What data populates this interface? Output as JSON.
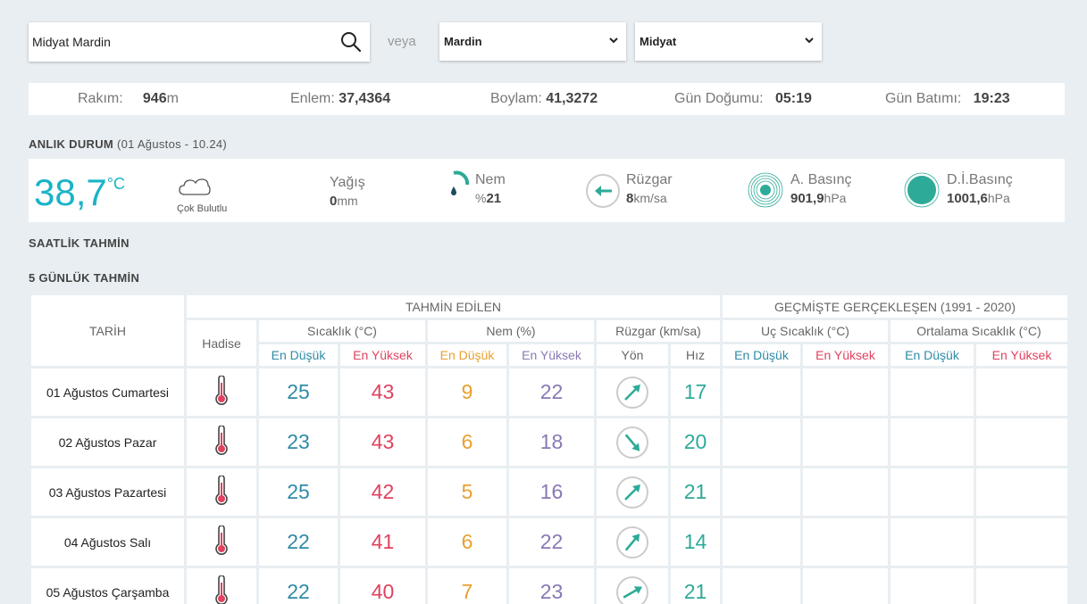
{
  "search": {
    "value": "Midyat Mardin"
  },
  "veya": "veya",
  "select_il": "Mardin",
  "select_ilce": "Midyat",
  "info": {
    "rakim_label": "Rakım:",
    "rakim_value": "946",
    "rakim_unit": "m",
    "enlem_label": "Enlem:",
    "enlem_value": "37,4364",
    "boylam_label": "Boylam:",
    "boylam_value": "41,3272",
    "gun_dogumu_label": "Gün Doğumu:",
    "gun_dogumu_value": "05:19",
    "gun_batimi_label": "Gün Batımı:",
    "gun_batimi_value": "19:23"
  },
  "current": {
    "title": "ANLIK DURUM",
    "date": "(01 Ağustos - 10.24)",
    "temp": "38,7",
    "temp_unit": "°C",
    "condition": "Çok Bulutlu",
    "yagis_label": "Yağış",
    "yagis_value": "0",
    "yagis_unit": "mm",
    "nem_label": "Nem",
    "nem_prefix": "%",
    "nem_value": "21",
    "ruzgar_label": "Rüzgar",
    "ruzgar_value": "8",
    "ruzgar_unit": "km/sa",
    "abasinc_label": "A. Basınç",
    "abasinc_value": "901,9",
    "abasinc_unit": "hPa",
    "dibasinc_label": "D.İ.Basınç",
    "dibasinc_value": "1001,6",
    "dibasinc_unit": "hPa"
  },
  "hourly_title": "SAATLİK TAHMİN",
  "daily_title": "5 GÜNLÜK TAHMİN",
  "table": {
    "tarih": "TARİH",
    "tahmin_edilen": "TAHMİN EDİLEN",
    "gecmiste": "GEÇMİŞTE GERÇEKLEŞEN (1991 - 2020)",
    "hadise": "Hadise",
    "sicaklik": "Sıcaklık (°C)",
    "nem": "Nem (%)",
    "ruzgar": "Rüzgar (km/sa)",
    "uc_sicaklik": "Uç Sıcaklık (°C)",
    "ortalama_sicaklik": "Ortalama Sıcaklık (°C)",
    "en_dusuk": "En Düşük",
    "en_yuksek": "En Yüksek",
    "yon": "Yön",
    "hiz": "Hız",
    "rows": [
      {
        "date": "01 Ağustos Cumartesi",
        "t_lo": "25",
        "t_hi": "43",
        "n_lo": "9",
        "n_hi": "22",
        "wind_deg": 45,
        "speed": "17"
      },
      {
        "date": "02 Ağustos Pazar",
        "t_lo": "23",
        "t_hi": "43",
        "n_lo": "6",
        "n_hi": "18",
        "wind_deg": 140,
        "speed": "20"
      },
      {
        "date": "03 Ağustos Pazartesi",
        "t_lo": "25",
        "t_hi": "42",
        "n_lo": "5",
        "n_hi": "16",
        "wind_deg": 45,
        "speed": "21"
      },
      {
        "date": "04 Ağustos Salı",
        "t_lo": "22",
        "t_hi": "41",
        "n_lo": "6",
        "n_hi": "22",
        "wind_deg": 40,
        "speed": "14"
      },
      {
        "date": "05 Ağustos Çarşamba",
        "t_lo": "22",
        "t_hi": "40",
        "n_lo": "7",
        "n_hi": "23",
        "wind_deg": 60,
        "speed": "21"
      }
    ]
  },
  "colors": {
    "accent": "#1ab3c7",
    "low": "#2e8ba7",
    "high": "#e0425f",
    "nem_low": "#e8a030",
    "nem_high": "#8a78b4",
    "wind": "#2eaa98"
  }
}
